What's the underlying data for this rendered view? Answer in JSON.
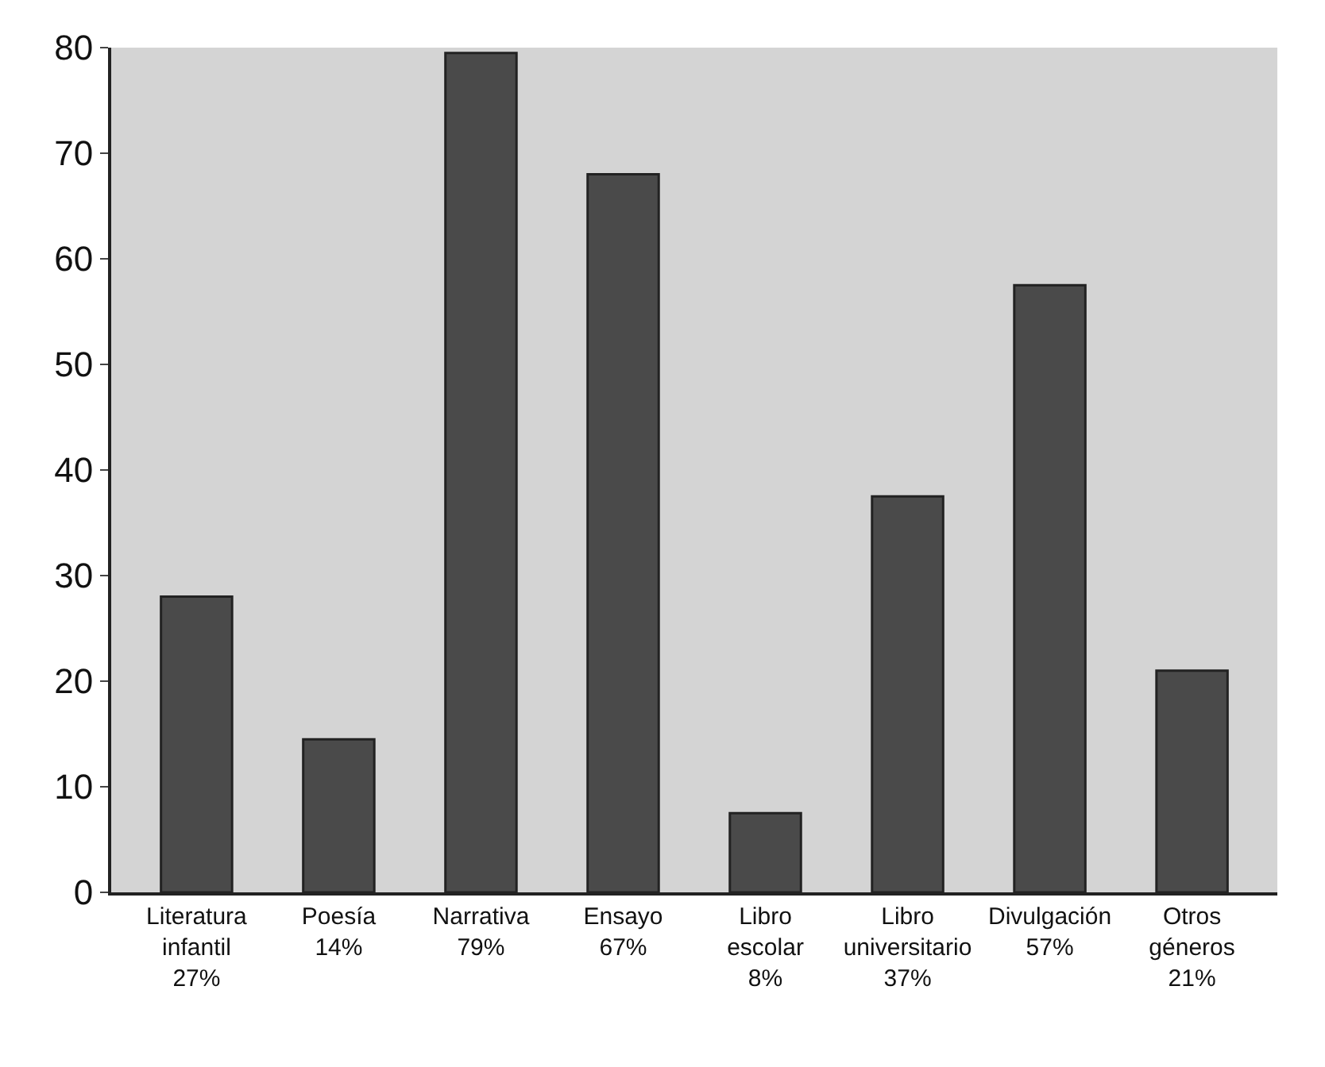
{
  "chart_data": {
    "type": "bar",
    "categories": [
      "Literatura infantil 27%",
      "Poesía 14%",
      "Narrativa 79%",
      "Ensayo 67%",
      "Libro escolar 8%",
      "Libro universitario 37%",
      "Divulgación 57%",
      "Otros géneros 21%"
    ],
    "values": [
      28,
      14.5,
      79.5,
      68,
      7.5,
      37.5,
      57.5,
      21
    ],
    "color": "#4a4a4a",
    "ylim": [
      0,
      80
    ],
    "yticks": [
      0,
      10,
      20,
      30,
      40,
      50,
      60,
      70,
      80
    ],
    "grid": false
  }
}
